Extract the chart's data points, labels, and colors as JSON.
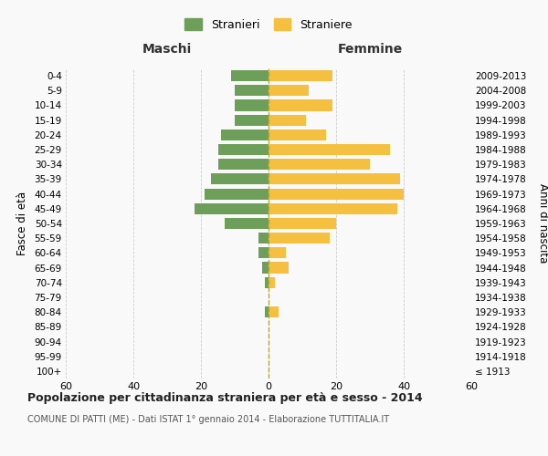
{
  "age_groups": [
    "100+",
    "95-99",
    "90-94",
    "85-89",
    "80-84",
    "75-79",
    "70-74",
    "65-69",
    "60-64",
    "55-59",
    "50-54",
    "45-49",
    "40-44",
    "35-39",
    "30-34",
    "25-29",
    "20-24",
    "15-19",
    "10-14",
    "5-9",
    "0-4"
  ],
  "birth_years": [
    "≤ 1913",
    "1914-1918",
    "1919-1923",
    "1924-1928",
    "1929-1933",
    "1934-1938",
    "1939-1943",
    "1944-1948",
    "1949-1953",
    "1954-1958",
    "1959-1963",
    "1964-1968",
    "1969-1973",
    "1974-1978",
    "1979-1983",
    "1984-1988",
    "1989-1993",
    "1994-1998",
    "1999-2003",
    "2004-2008",
    "2009-2013"
  ],
  "males": [
    0,
    0,
    0,
    0,
    1,
    0,
    1,
    2,
    3,
    3,
    13,
    22,
    19,
    17,
    15,
    15,
    14,
    10,
    10,
    10,
    11
  ],
  "females": [
    0,
    0,
    0,
    0,
    3,
    0,
    2,
    6,
    5,
    18,
    20,
    38,
    40,
    39,
    30,
    36,
    17,
    11,
    19,
    12,
    19
  ],
  "male_color": "#6d9e5a",
  "female_color": "#f5c040",
  "background_color": "#f9f9f9",
  "grid_color": "#cccccc",
  "title": "Popolazione per cittadinanza straniera per età e sesso - 2014",
  "subtitle": "COMUNE DI PATTI (ME) - Dati ISTAT 1° gennaio 2014 - Elaborazione TUTTITALIA.IT",
  "xlabel_left": "Maschi",
  "xlabel_right": "Femmine",
  "ylabel_left": "Fasce di età",
  "ylabel_right": "Anni di nascita",
  "legend_male": "Stranieri",
  "legend_female": "Straniere",
  "xlim": 60,
  "center_line_color": "#b0a848"
}
